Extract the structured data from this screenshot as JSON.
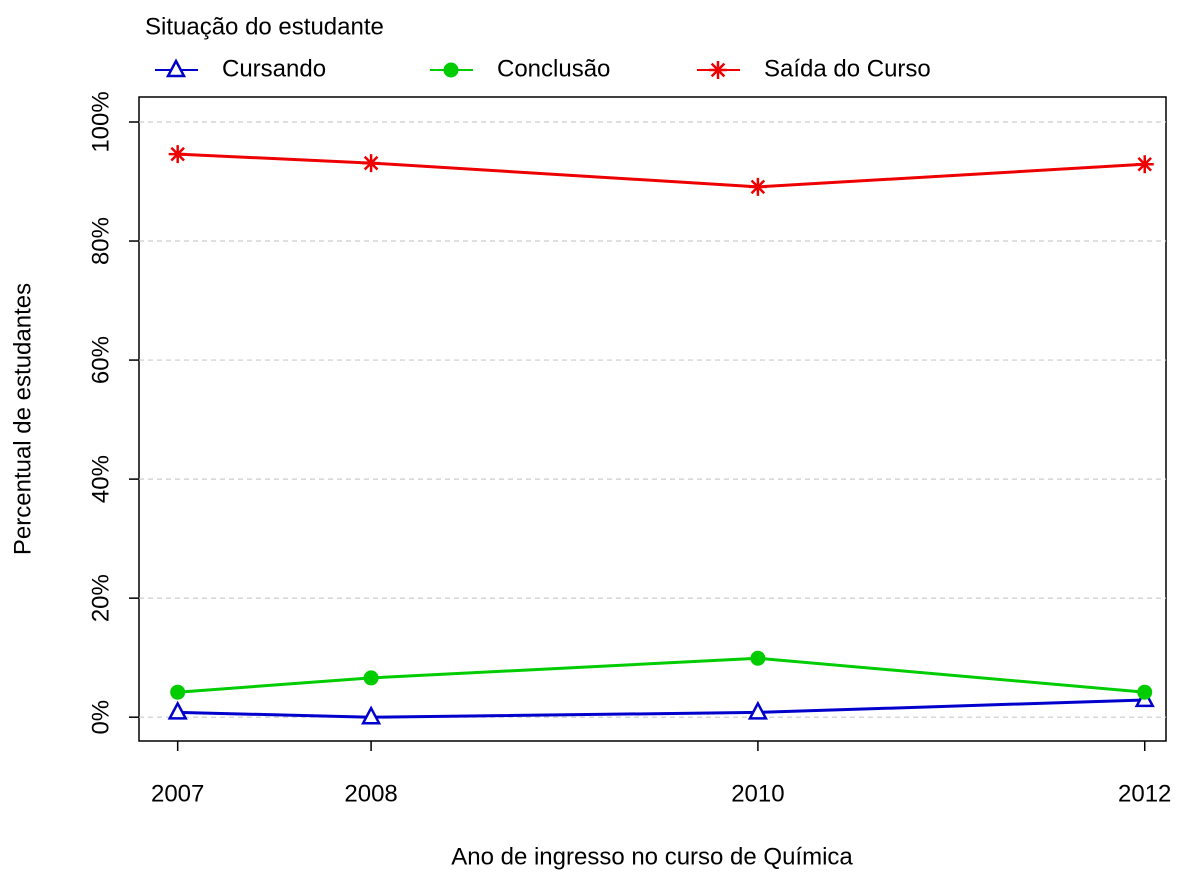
{
  "chart_data": {
    "type": "line",
    "xlabel": "Ano de ingresso no curso de Química",
    "ylabel": "Percentual de estudantes",
    "legend_title": "Situação do estudante",
    "legend": "top",
    "grid": true,
    "x": [
      2007,
      2008,
      2010,
      2012
    ],
    "xlim": [
      2006.8,
      2012.11
    ],
    "xticks": [
      2007,
      2008,
      2010,
      2012
    ],
    "ylim": [
      -4,
      104.2
    ],
    "yticks": [
      {
        "value": 0,
        "label": "0%"
      },
      {
        "value": 20,
        "label": "20%"
      },
      {
        "value": 40,
        "label": "40%"
      },
      {
        "value": 60,
        "label": "60%"
      },
      {
        "value": 80,
        "label": "80%"
      },
      {
        "value": 100,
        "label": "100%"
      }
    ],
    "series": [
      {
        "name": "Cursando",
        "color": "#0000cc",
        "marker": "triangle",
        "values": [
          0.8,
          0,
          0.8,
          2.9
        ]
      },
      {
        "name": "Conclusão",
        "color": "#00cc00",
        "marker": "circle",
        "values": [
          4.2,
          6.6,
          9.9,
          4.2
        ]
      },
      {
        "name": "Saída do Curso",
        "color": "#ee0000",
        "marker": "asterisk",
        "values": [
          94.6,
          93.1,
          89.1,
          92.9
        ]
      }
    ]
  }
}
